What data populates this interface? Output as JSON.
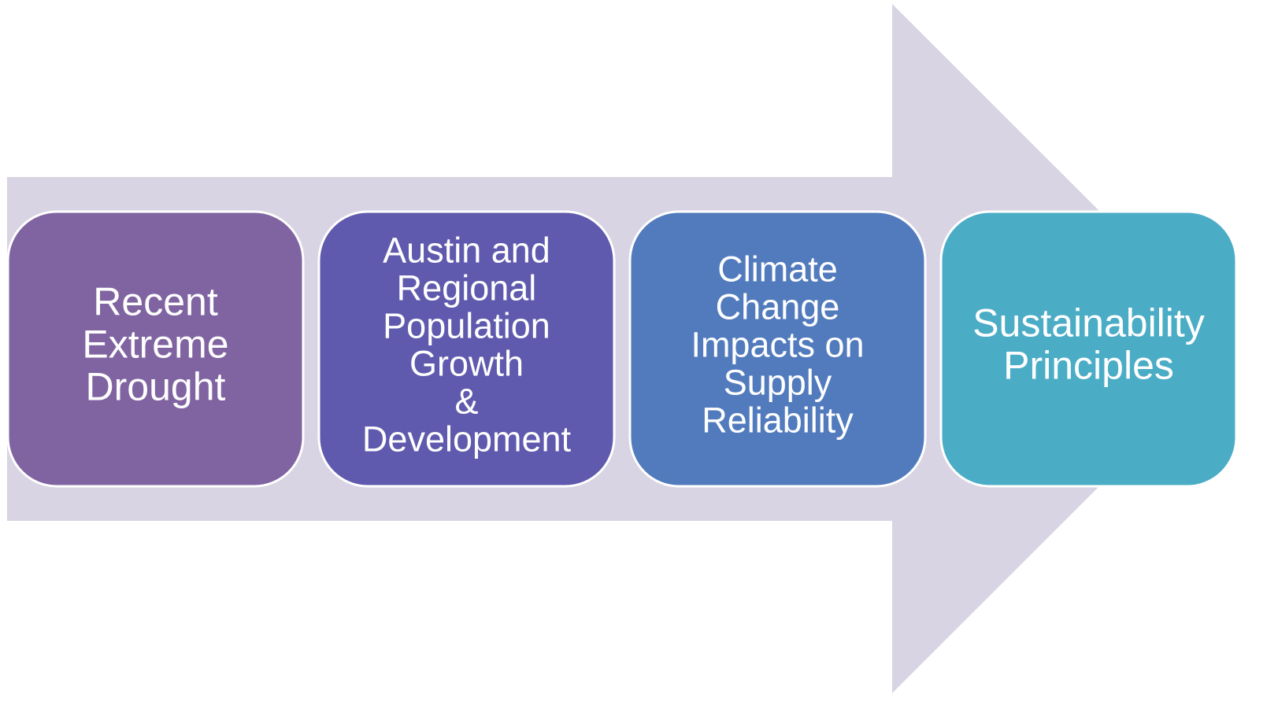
{
  "nodes": [
    {
      "lines": [
        "Recent",
        "Extreme",
        "Drought"
      ]
    },
    {
      "lines": [
        "Austin and",
        "Regional",
        "Population",
        "Growth",
        "&",
        "Development"
      ]
    },
    {
      "lines": [
        "Climate",
        "Change",
        "Impacts on",
        "Supply",
        "Reliability"
      ]
    },
    {
      "lines": [
        "Sustainability",
        "Principles"
      ]
    }
  ]
}
